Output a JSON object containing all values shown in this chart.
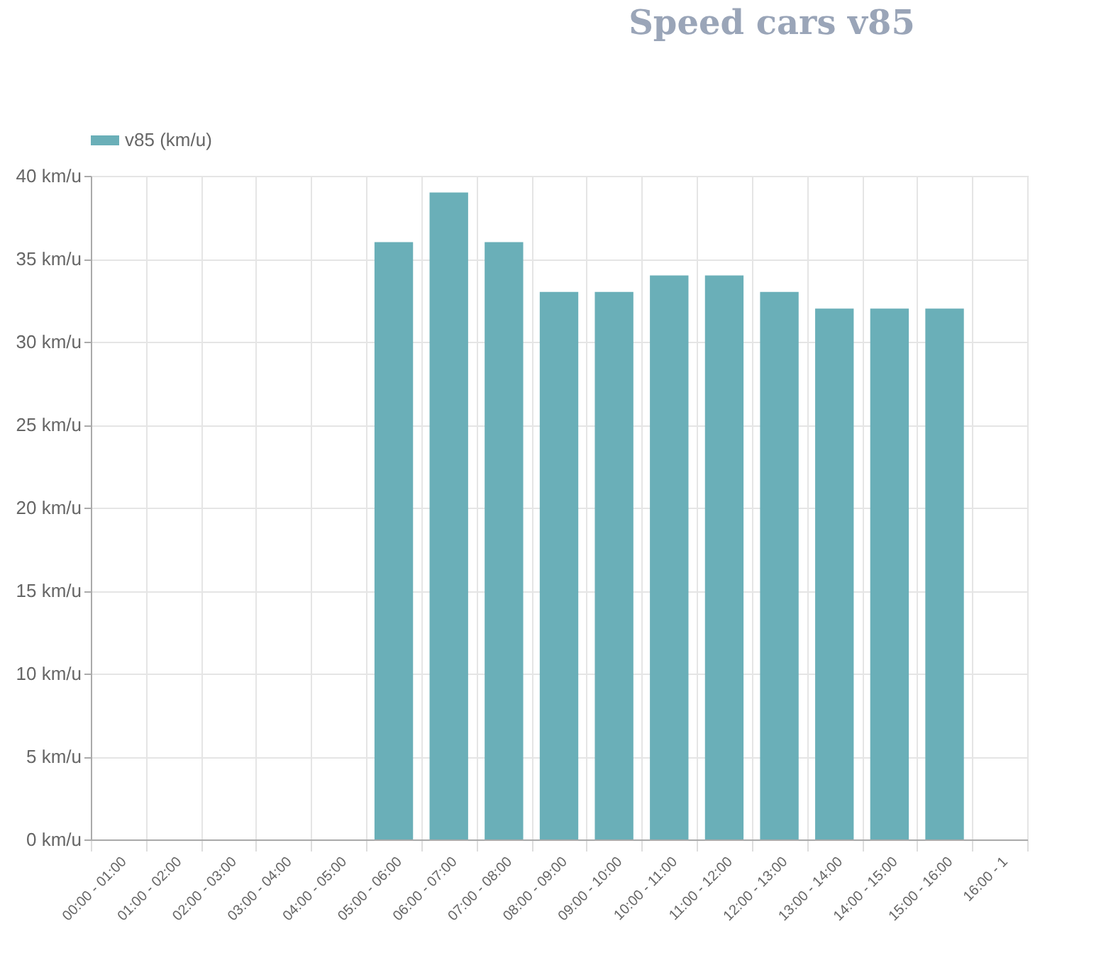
{
  "chart_data": {
    "type": "bar",
    "title": "Speed cars v85",
    "categories": [
      "00:00 - 01:00",
      "01:00 - 02:00",
      "02:00 - 03:00",
      "03:00 - 04:00",
      "04:00 - 05:00",
      "05:00 - 06:00",
      "06:00 - 07:00",
      "07:00 - 08:00",
      "08:00 - 09:00",
      "09:00 - 10:00",
      "10:00 - 11:00",
      "11:00 - 12:00",
      "12:00 - 13:00",
      "13:00 - 14:00",
      "14:00 - 15:00",
      "15:00 - 16:00",
      "16:00 - 1"
    ],
    "series": [
      {
        "name": "v85 (km/u)",
        "color": "#6aafb8",
        "values": [
          null,
          null,
          null,
          null,
          null,
          36,
          39,
          36,
          33,
          33,
          34,
          34,
          33,
          32,
          32,
          32,
          null
        ]
      }
    ],
    "ylim": [
      0,
      40
    ],
    "yticks": [
      {
        "value": 0,
        "label": "0 km/u"
      },
      {
        "value": 5,
        "label": "5 km/u"
      },
      {
        "value": 10,
        "label": "10 km/u"
      },
      {
        "value": 15,
        "label": "15 km/u"
      },
      {
        "value": 20,
        "label": "20 km/u"
      },
      {
        "value": 25,
        "label": "25 km/u"
      },
      {
        "value": 30,
        "label": "30 km/u"
      },
      {
        "value": 35,
        "label": "35 km/u"
      },
      {
        "value": 40,
        "label": "40 km/u"
      }
    ],
    "grid": true,
    "legend": "top"
  }
}
